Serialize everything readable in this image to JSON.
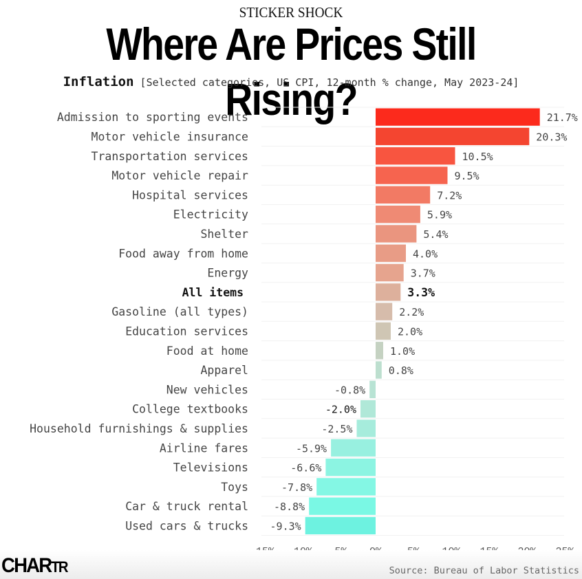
{
  "header": {
    "kicker": "STICKER SHOCK",
    "headline": "Where Are Prices Still Rising?",
    "subtitle_strong": "Inflation",
    "subtitle_desc": "[Selected categories, US CPI, 12-month % change, May 2023-24]"
  },
  "footer": {
    "logo_main": "CHAR",
    "logo_small": "TR",
    "source": "Source: Bureau of Labor Statistics"
  },
  "chart_data": {
    "type": "bar",
    "orientation": "horizontal",
    "title": "Where Are Prices Still Rising?",
    "subtitle": "Inflation [Selected categories, US CPI, 12-month % change, May 2023-24]",
    "xlabel": "",
    "ylabel": "",
    "xlim": [
      -15,
      25
    ],
    "x_ticks": [
      -15,
      -10,
      -5,
      0,
      5,
      10,
      15,
      20,
      25
    ],
    "x_tick_labels": [
      "-15%",
      "-10%",
      "-5%",
      "0%",
      "5%",
      "10%",
      "15%",
      "20%",
      "25%"
    ],
    "grid": "horizontal row separators",
    "legend": "none",
    "highlight_category": "All items",
    "categories": [
      "Admission to sporting events",
      "Motor vehicle insurance",
      "Transportation services",
      "Motor vehicle repair",
      "Hospital services",
      "Electricity",
      "Shelter",
      "Food away from home",
      "Energy",
      "All items",
      "Gasoline (all types)",
      "Education services",
      "Food at home",
      "Apparel",
      "New vehicles",
      "College textbooks",
      "Household furnishings & supplies",
      "Airline fares",
      "Televisions",
      "Toys",
      "Car & truck rental",
      "Used cars & trucks"
    ],
    "values": [
      21.7,
      20.3,
      10.5,
      9.5,
      7.2,
      5.9,
      5.4,
      4.0,
      3.7,
      3.3,
      2.2,
      2.0,
      1.0,
      0.8,
      -0.8,
      -2.0,
      -2.5,
      -5.9,
      -6.6,
      -7.8,
      -8.8,
      -9.3
    ],
    "value_labels": [
      "21.7%",
      "20.3%",
      "10.5%",
      "9.5%",
      "7.2%",
      "5.9%",
      "5.4%",
      "4.0%",
      "3.7%",
      "3.3%",
      "2.2%",
      "2.0%",
      "1.0%",
      "0.8%",
      "-0.8%",
      "-2.0%",
      "-2.5%",
      "-5.9%",
      "-6.6%",
      "-7.8%",
      "-8.8%",
      "-9.3%"
    ],
    "colors": [
      "#fc2a1c",
      "#f44530",
      "#f85540",
      "#f6644f",
      "#f27a64",
      "#ef8a74",
      "#ea957f",
      "#e89c86",
      "#e6a48e",
      "#ddb09c",
      "#d6bcab",
      "#cfc6b4",
      "#c5d2c2",
      "#bddfcf",
      "#b8e3d4",
      "#b0e8d8",
      "#a6ecdc",
      "#98f0e0",
      "#8cf4e2",
      "#84f7e4",
      "#7af8e4",
      "#6df2e0"
    ]
  }
}
